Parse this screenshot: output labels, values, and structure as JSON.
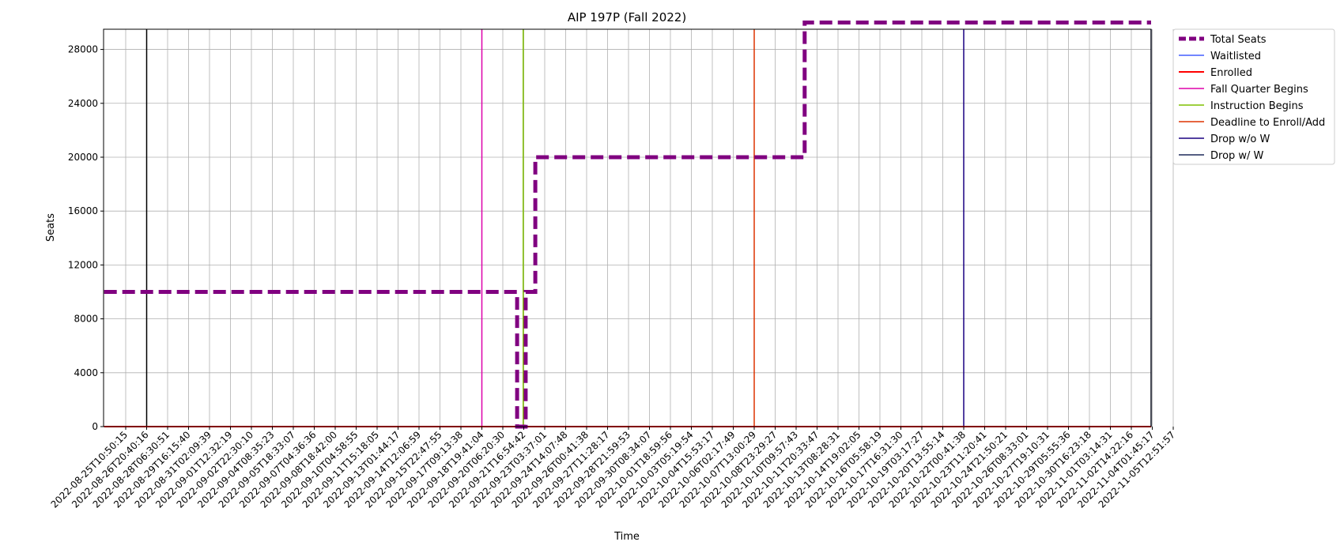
{
  "chart_data": {
    "type": "line",
    "title": "AIP 197P (Fall 2022)",
    "xlabel": "Time",
    "ylabel": "Seats",
    "ylim": [
      0,
      29500
    ],
    "yticks": [
      0,
      4000,
      8000,
      12000,
      16000,
      20000,
      24000,
      28000
    ],
    "grid": true,
    "legend_placement": "outside-top-right",
    "x_tick_labels": [
      "2022-08-25T10:50:15",
      "2022-08-26T20:40:16",
      "2022-08-28T06:30:51",
      "2022-08-29T16:15:40",
      "2022-08-31T02:09:39",
      "2022-09-01T12:32:19",
      "2022-09-02T22:30:10",
      "2022-09-04T08:35:23",
      "2022-09-05T18:33:07",
      "2022-09-07T04:36:36",
      "2022-09-08T18:42:00",
      "2022-09-10T04:58:55",
      "2022-09-11T15:18:05",
      "2022-09-13T01:44:17",
      "2022-09-14T12:06:59",
      "2022-09-15T22:47:55",
      "2022-09-17T09:13:38",
      "2022-09-18T19:41:04",
      "2022-09-20T06:20:30",
      "2022-09-21T16:54:42",
      "2022-09-23T03:37:01",
      "2022-09-24T14:07:48",
      "2022-09-26T00:41:38",
      "2022-09-27T11:28:17",
      "2022-09-28T21:59:53",
      "2022-09-30T08:34:07",
      "2022-10-01T18:59:56",
      "2022-10-03T05:19:54",
      "2022-10-04T15:53:17",
      "2022-10-06T02:17:49",
      "2022-10-07T13:00:29",
      "2022-10-08T23:29:27",
      "2022-10-10T09:57:43",
      "2022-10-11T20:33:47",
      "2022-10-13T08:28:31",
      "2022-10-14T19:02:05",
      "2022-10-16T05:58:19",
      "2022-10-17T16:31:30",
      "2022-10-19T03:17:27",
      "2022-10-20T13:55:14",
      "2022-10-22T00:41:38",
      "2022-10-23T11:20:41",
      "2022-10-24T21:50:21",
      "2022-10-26T08:33:01",
      "2022-10-27T19:10:31",
      "2022-10-29T05:55:36",
      "2022-10-30T16:23:18",
      "2022-11-01T03:14:31",
      "2022-11-02T14:22:16",
      "2022-11-04T01:45:17",
      "2022-11-05T12:51:57"
    ],
    "series": [
      {
        "name": "Total Seats",
        "color": "#800080",
        "style": "dashed-thick",
        "x": [
          "2022-08-24T00:00:00",
          "2022-09-21T06:00:00",
          "2022-09-21T06:00:00",
          "2022-09-21T20:00:00",
          "2022-09-21T20:00:00",
          "2022-09-22T12:00:00",
          "2022-09-22T12:00:00",
          "2022-10-11T00:00:00",
          "2022-10-11T00:00:00",
          "2022-11-06T00:00:00"
        ],
        "values": [
          10000,
          10000,
          0,
          0,
          10000,
          10000,
          20000,
          20000,
          30000,
          30000
        ]
      },
      {
        "name": "Waitlisted",
        "color": "#1f3fff",
        "style": "solid-thin",
        "x": [
          "2022-08-24T00:00:00",
          "2022-11-06T00:00:00"
        ],
        "values": [
          0,
          0
        ]
      },
      {
        "name": "Enrolled",
        "color": "#ff0000",
        "style": "solid",
        "x": [
          "2022-08-24T00:00:00",
          "2022-11-06T00:00:00"
        ],
        "values": [
          0,
          0
        ]
      }
    ],
    "markers": [
      {
        "name": "",
        "color": "#000000",
        "x": "2022-08-26T20:40:16"
      },
      {
        "name": "Fall Quarter Begins",
        "color": "#dd00aa",
        "x": "2022-09-18T19:41:04"
      },
      {
        "name": "Instruction Begins",
        "color": "#7fbf00",
        "x": "2022-09-21T16:00:00"
      },
      {
        "name": "Deadline to Enroll/Add",
        "color": "#dd3300",
        "x": "2022-10-07T13:00:29"
      },
      {
        "name": "Drop w/o W",
        "color": "#1a0080",
        "x": "2022-10-22T00:41:38"
      },
      {
        "name": "Drop w/ W",
        "color": "#1f2a5a",
        "x": "2022-11-04T20:00:00"
      }
    ]
  }
}
